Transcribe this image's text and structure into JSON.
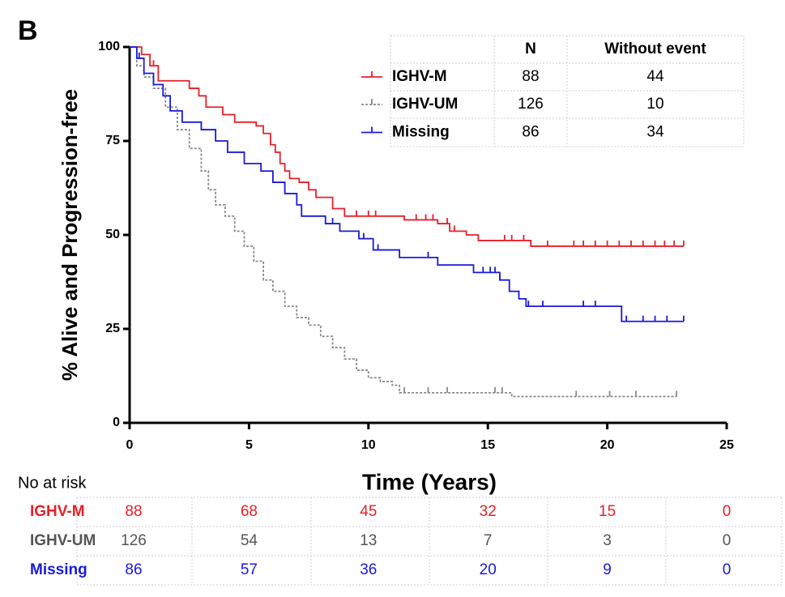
{
  "panel_label": "B",
  "chart_data": {
    "type": "line",
    "step": true,
    "ylabel": "% Alive and Progression-free",
    "xlabel": "Time (Years)",
    "xlim": [
      0,
      25
    ],
    "xticks": [
      0,
      5,
      10,
      15,
      20,
      25
    ],
    "ylim": [
      0,
      100
    ],
    "yticks": [
      0,
      25,
      50,
      75,
      100
    ],
    "legend_headers": [
      "N",
      "Without event"
    ],
    "risk_title": "No at risk",
    "series": [
      {
        "name": "IGHV-M",
        "color": "#e8202a",
        "text_color": "#e8202a",
        "dashed": false,
        "n": 88,
        "without_event": 44,
        "x": [
          0,
          0.5,
          0.85,
          1.2,
          2.5,
          2.9,
          3.2,
          3.9,
          4.4,
          5.3,
          5.6,
          5.9,
          6.1,
          6.3,
          6.5,
          6.7,
          7.1,
          7.5,
          7.8,
          8.5,
          9.0,
          11.5,
          12.9,
          13.4,
          14.1,
          14.6,
          16.8,
          23.2
        ],
        "values": [
          100,
          98,
          95,
          91,
          89,
          87,
          84,
          82,
          80,
          79,
          77,
          74,
          72,
          69,
          67,
          65,
          64,
          62,
          60,
          57,
          55,
          54,
          53,
          51,
          50,
          48.5,
          47,
          47
        ],
        "censor_x": [
          1.0,
          9.5,
          10.0,
          10.3,
          12.0,
          12.4,
          12.7,
          13.3,
          13.6,
          15.7,
          16.0,
          16.5,
          16.8,
          17.5,
          18.6,
          19.0,
          19.5,
          20.0,
          20.5,
          21.0,
          21.5,
          22.0,
          22.4,
          22.8,
          23.2
        ],
        "at_risk": [
          88,
          68,
          45,
          32,
          15,
          0
        ]
      },
      {
        "name": "IGHV-UM",
        "color": "#8a8a8a",
        "text_color": "#555555",
        "dashed": true,
        "n": 126,
        "without_event": 10,
        "x": [
          0,
          0.3,
          0.6,
          1.0,
          1.5,
          2.0,
          2.5,
          3.0,
          3.3,
          3.6,
          4.0,
          4.4,
          4.8,
          5.2,
          5.6,
          6.0,
          6.5,
          7.0,
          7.5,
          8.0,
          8.5,
          9.0,
          9.5,
          10.0,
          10.5,
          11.0,
          11.3,
          16.0,
          22.9
        ],
        "values": [
          100,
          95,
          92,
          89,
          84,
          78,
          73,
          67,
          62,
          58,
          55,
          51,
          47,
          43,
          38,
          35,
          31,
          28,
          26,
          23,
          20,
          17,
          14,
          12,
          11,
          10,
          8,
          7,
          7
        ],
        "censor_x": [
          11.5,
          12.5,
          13.3,
          15.3,
          15.6,
          18.7,
          20.1,
          21.2,
          22.9
        ],
        "at_risk": [
          126,
          54,
          13,
          7,
          3,
          0
        ]
      },
      {
        "name": "Missing",
        "color": "#1a1adb",
        "text_color": "#1a1adb",
        "dashed": false,
        "n": 86,
        "without_event": 34,
        "x": [
          0,
          0.3,
          0.6,
          1.0,
          1.4,
          1.7,
          2.2,
          3.0,
          3.6,
          4.1,
          4.8,
          5.5,
          6.0,
          6.5,
          7.0,
          7.2,
          8.2,
          8.8,
          9.6,
          10.2,
          11.3,
          12.9,
          14.4,
          15.5,
          15.9,
          16.3,
          16.6,
          20.6,
          23.2
        ],
        "values": [
          100,
          97,
          93,
          90,
          87,
          83,
          80,
          78,
          75,
          72,
          69,
          67,
          64,
          61,
          58,
          55,
          53,
          51,
          49,
          46,
          44,
          42,
          40,
          38,
          35,
          33,
          31,
          27,
          27
        ],
        "censor_x": [
          0.4,
          8.5,
          9.8,
          10.4,
          12.5,
          14.8,
          15.1,
          15.3,
          15.5,
          16.7,
          17.3,
          19.0,
          19.5,
          20.8,
          21.5,
          22.0,
          22.5,
          23.2
        ],
        "at_risk": [
          86,
          57,
          36,
          20,
          9,
          0
        ]
      }
    ]
  }
}
